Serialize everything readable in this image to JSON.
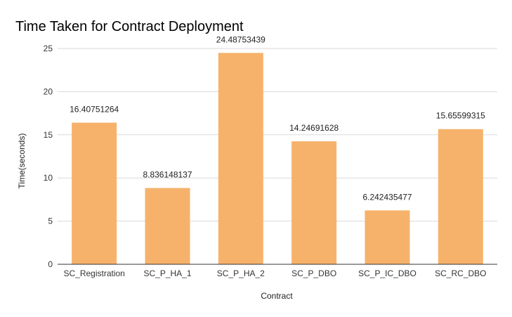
{
  "chart_data": {
    "type": "bar",
    "title": "Time Taken for Contract Deployment",
    "xlabel": "Contract",
    "ylabel": "Time(seconds)",
    "categories": [
      "SC_Registration",
      "SC_P_HA_1",
      "SC_P_HA_2",
      "SC_P_DBO",
      "SC_P_IC_DBO",
      "SC_RC_DBO"
    ],
    "values": [
      16.40751264,
      8.836148137,
      24.48753439,
      14.24691628,
      6.242435477,
      15.65599315
    ],
    "value_labels": [
      "16.40751264",
      "8.836148137",
      "24.48753439",
      "14.24691628",
      "6.242435477",
      "15.65599315"
    ],
    "ylim": [
      0,
      25
    ],
    "yticks": [
      "0",
      "5",
      "10",
      "15",
      "20",
      "25"
    ],
    "grid": true,
    "legend": "none",
    "bar_color": "#f6b26b",
    "grid_color": "#d9d9d9",
    "axis_color": "#333333"
  }
}
